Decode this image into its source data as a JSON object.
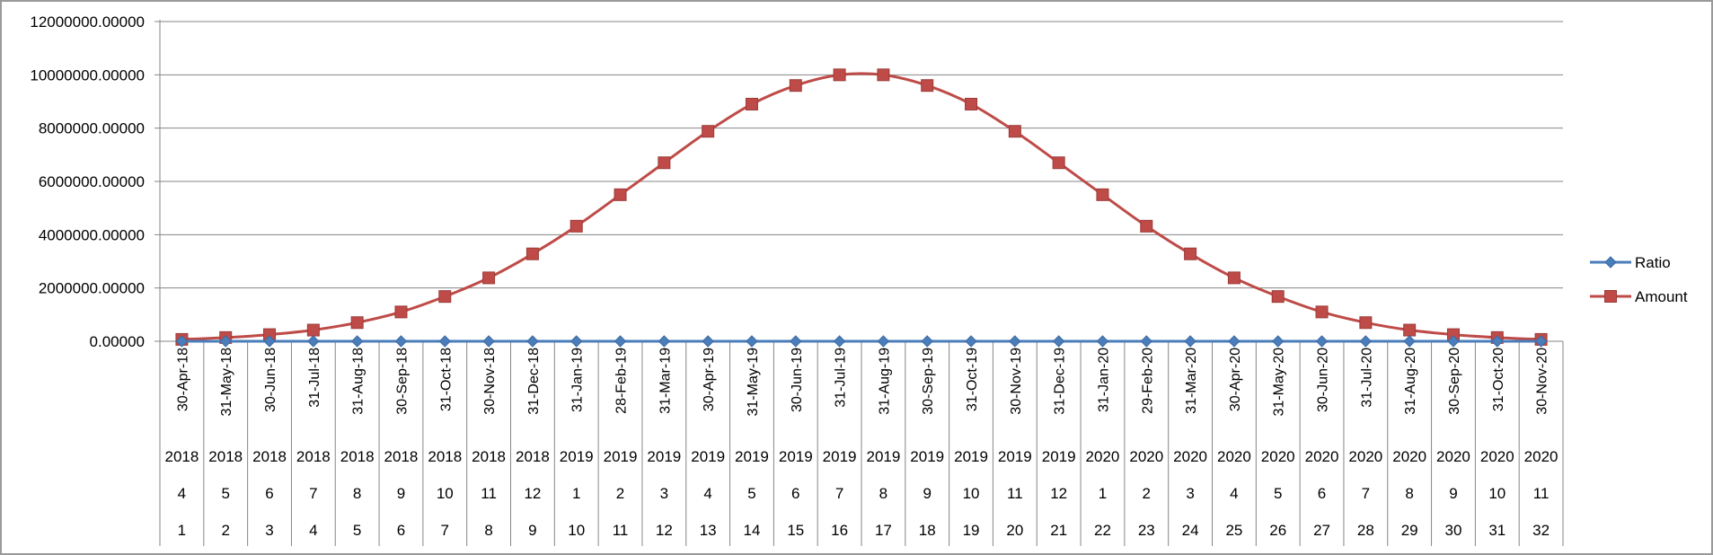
{
  "chart_data": {
    "type": "line",
    "title": "",
    "xlabel": "",
    "ylabel": "",
    "ylim": [
      0,
      12000000
    ],
    "y_ticks": [
      0,
      2000000,
      4000000,
      6000000,
      8000000,
      10000000,
      12000000
    ],
    "y_tick_labels": [
      "0.00000",
      "2000000.00000",
      "4000000.00000",
      "6000000.00000",
      "8000000.00000",
      "10000000.00000",
      "12000000.00000"
    ],
    "grid": "horizontal",
    "legend_position": "right",
    "categories": [
      "30-Apr-18",
      "31-May-18",
      "30-Jun-18",
      "31-Jul-18",
      "31-Aug-18",
      "30-Sep-18",
      "31-Oct-18",
      "30-Nov-18",
      "31-Dec-18",
      "31-Jan-19",
      "28-Feb-19",
      "31-Mar-19",
      "30-Apr-19",
      "31-May-19",
      "30-Jun-19",
      "31-Jul-19",
      "31-Aug-19",
      "30-Sep-19",
      "31-Oct-19",
      "30-Nov-19",
      "31-Dec-19",
      "31-Jan-20",
      "29-Feb-20",
      "31-Mar-20",
      "30-Apr-20",
      "31-May-20",
      "30-Jun-20",
      "31-Jul-20",
      "31-Aug-20",
      "30-Sep-20",
      "31-Oct-20",
      "30-Nov-20"
    ],
    "category_years": [
      "2018",
      "2018",
      "2018",
      "2018",
      "2018",
      "2018",
      "2018",
      "2018",
      "2018",
      "2019",
      "2019",
      "2019",
      "2019",
      "2019",
      "2019",
      "2019",
      "2019",
      "2019",
      "2019",
      "2019",
      "2019",
      "2020",
      "2020",
      "2020",
      "2020",
      "2020",
      "2020",
      "2020",
      "2020",
      "2020",
      "2020",
      "2020"
    ],
    "category_months": [
      "4",
      "5",
      "6",
      "7",
      "8",
      "9",
      "10",
      "11",
      "12",
      "1",
      "2",
      "3",
      "4",
      "5",
      "6",
      "7",
      "8",
      "9",
      "10",
      "11",
      "12",
      "1",
      "2",
      "3",
      "4",
      "5",
      "6",
      "7",
      "8",
      "9",
      "10",
      "11"
    ],
    "category_index": [
      "1",
      "2",
      "3",
      "4",
      "5",
      "6",
      "7",
      "8",
      "9",
      "10",
      "11",
      "12",
      "13",
      "14",
      "15",
      "16",
      "17",
      "18",
      "19",
      "20",
      "21",
      "22",
      "23",
      "24",
      "25",
      "26",
      "27",
      "28",
      "29",
      "30",
      "31",
      "32"
    ],
    "series": [
      {
        "name": "Ratio",
        "color": "#4a7ebb",
        "marker": "diamond",
        "values": [
          0.0,
          0.0,
          0.0,
          0.0,
          0.0,
          0.0,
          0.0,
          0.0,
          0.0,
          0.0,
          0.0,
          0.0,
          0.0,
          0.0,
          0.0,
          0.0,
          0.0,
          0.0,
          0.0,
          0.0,
          0.0,
          0.0,
          0.0,
          0.0,
          0.0,
          0.0,
          0.0,
          0.0,
          0.0,
          0.0,
          0.0,
          0.0
        ]
      },
      {
        "name": "Amount",
        "color": "#be4b48",
        "marker": "square",
        "values": [
          70000,
          140000,
          250000,
          420000,
          700000,
          1100000,
          1680000,
          2380000,
          3280000,
          4320000,
          5500000,
          6700000,
          7880000,
          8900000,
          9600000,
          10000000,
          10000000,
          9600000,
          8900000,
          7880000,
          6700000,
          5500000,
          4320000,
          3280000,
          2380000,
          1680000,
          1100000,
          700000,
          420000,
          250000,
          140000,
          70000
        ]
      }
    ]
  }
}
